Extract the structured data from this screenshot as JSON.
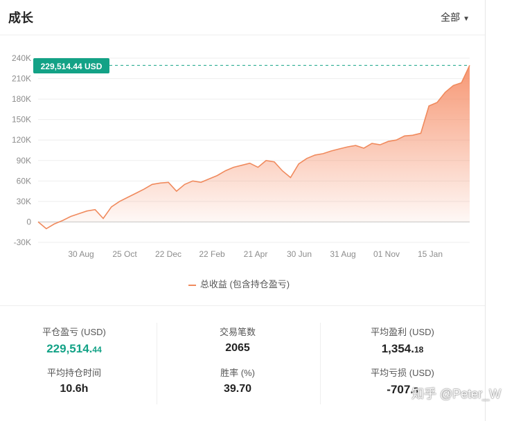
{
  "header": {
    "title": "成长",
    "period": "全部",
    "caret": "▼"
  },
  "tooltip_label": "229,514.44 USD",
  "legend": {
    "label": "总收益 (包含持仓盈亏)"
  },
  "stats": {
    "closed_pnl": {
      "label": "平仓盈亏 (USD)",
      "int_part": "229,514.",
      "dec_part": "44"
    },
    "avg_hold": {
      "label": "平均持仓时间",
      "value": "10.6h"
    },
    "trades": {
      "label": "交易笔数",
      "value": "2065"
    },
    "win_rate": {
      "label": "胜率 (%)",
      "value": "39.70"
    },
    "avg_profit": {
      "label": "平均盈利 (USD)",
      "int_part": "1,354.",
      "dec_part": "18"
    },
    "avg_loss": {
      "label": "平均亏损 (USD)",
      "int_part": "-707.",
      "dec_part": "5"
    }
  },
  "watermark": "知乎 @Peter_W",
  "colors": {
    "line": "#f08a5d",
    "accent": "#13a286",
    "grid": "#eeeeee",
    "axis_text": "#8c8c8c"
  },
  "chart_data": {
    "type": "area",
    "title": "",
    "xlabel": "",
    "ylabel": "",
    "ylim": [
      -30000,
      240000
    ],
    "y_ticks": [
      "240K",
      "210K",
      "180K",
      "150K",
      "120K",
      "90K",
      "60K",
      "30K",
      "0",
      "-30K"
    ],
    "x_ticks": [
      "30 Aug",
      "25 Oct",
      "22 Dec",
      "22 Feb",
      "21 Apr",
      "30 Jun",
      "31 Aug",
      "01 Nov",
      "15 Jan"
    ],
    "grid": true,
    "legend_position": "bottom",
    "series": [
      {
        "name": "总收益 (包含持仓盈亏)",
        "values": [
          0,
          -10000,
          -3000,
          2000,
          8000,
          12000,
          16000,
          18000,
          5000,
          22000,
          30000,
          36000,
          42000,
          48000,
          55000,
          57000,
          58000,
          45000,
          55000,
          60000,
          58000,
          63000,
          68000,
          75000,
          80000,
          83000,
          86000,
          80000,
          90000,
          88000,
          75000,
          65000,
          85000,
          93000,
          98000,
          100000,
          104000,
          107000,
          110000,
          112000,
          108000,
          115000,
          113000,
          118000,
          120000,
          126000,
          127000,
          130000,
          170000,
          175000,
          190000,
          200000,
          204000,
          229514.44
        ]
      }
    ],
    "max_value": 229514.44
  }
}
